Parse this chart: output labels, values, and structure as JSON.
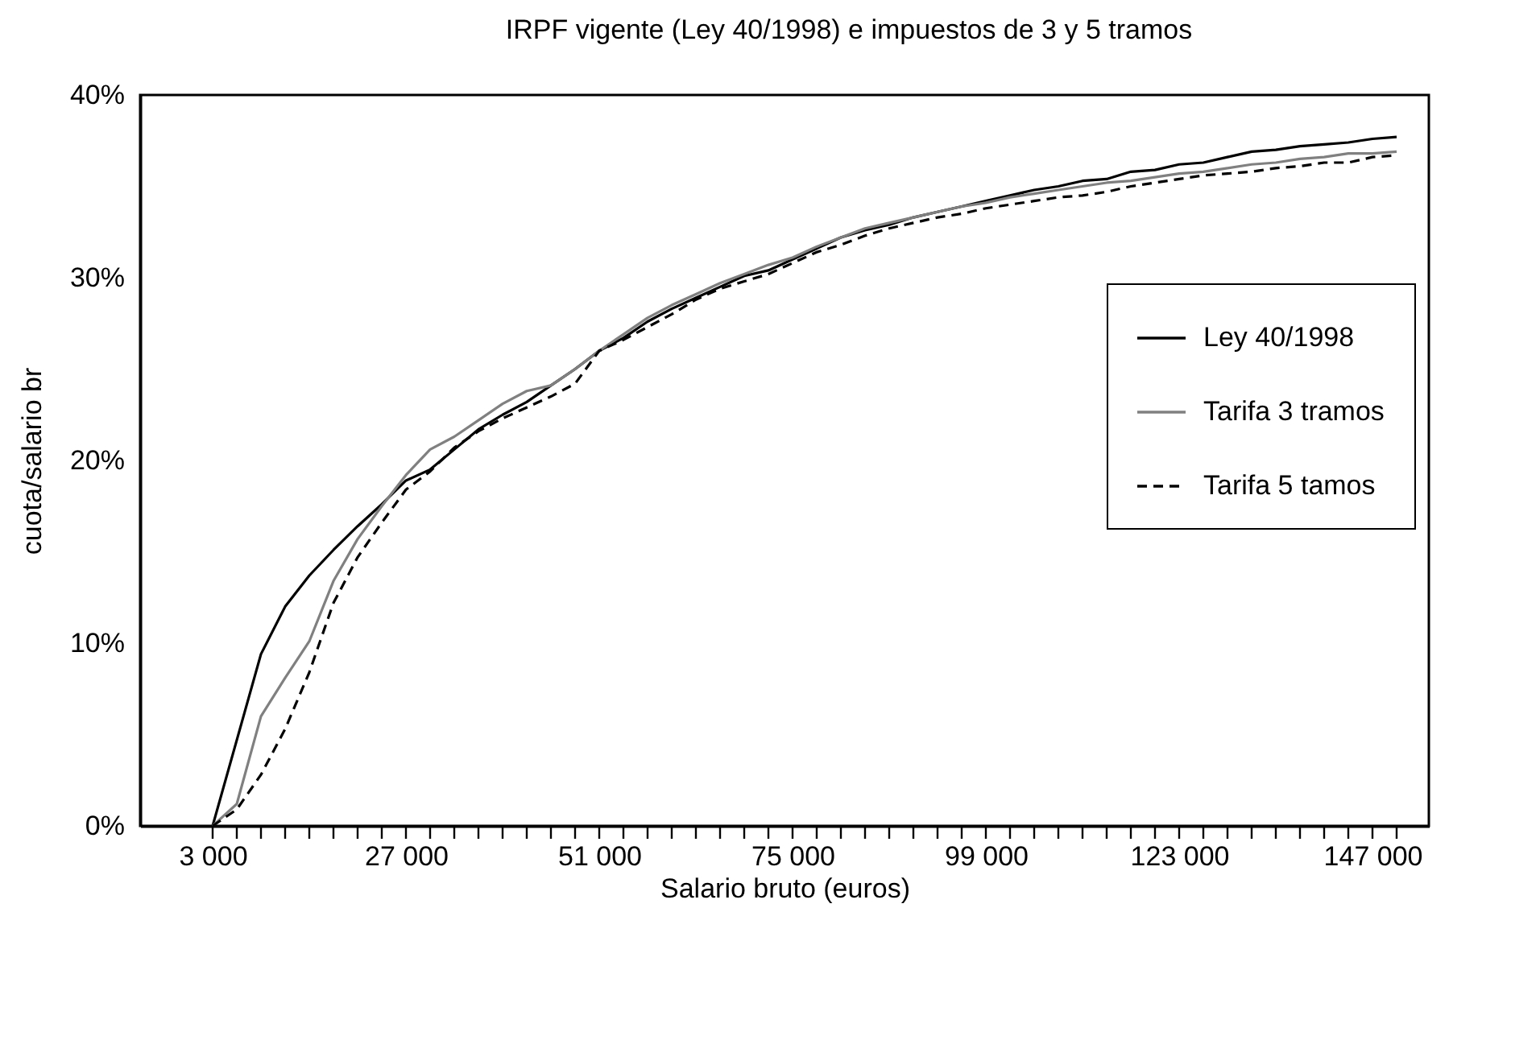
{
  "chart_data": {
    "type": "line",
    "title": "IRPF vigente (Ley 40/1998) e impuestos de 3 y 5 tramos",
    "xlabel": "Salario bruto (euros)",
    "ylabel": "cuota/salario br",
    "x": [
      3000,
      6000,
      9000,
      12000,
      15000,
      18000,
      21000,
      24000,
      27000,
      30000,
      33000,
      36000,
      39000,
      42000,
      45000,
      48000,
      51000,
      54000,
      57000,
      60000,
      63000,
      66000,
      69000,
      72000,
      75000,
      78000,
      81000,
      84000,
      87000,
      90000,
      93000,
      96000,
      99000,
      102000,
      105000,
      108000,
      111000,
      114000,
      117000,
      120000,
      123000,
      126000,
      129000,
      132000,
      135000,
      138000,
      141000,
      144000,
      147000,
      150000
    ],
    "series": [
      {
        "name": "Ley 40/1998",
        "color": "#000000",
        "line_style": "solid",
        "values": [
          0,
          4.7,
          9.4,
          12.0,
          13.7,
          15.1,
          16.4,
          17.6,
          18.9,
          19.5,
          20.6,
          21.7,
          22.5,
          23.2,
          24.1,
          25.0,
          26.0,
          26.7,
          27.6,
          28.3,
          28.9,
          29.5,
          30.1,
          30.4,
          31.0,
          31.6,
          32.2,
          32.6,
          32.9,
          33.3,
          33.6,
          33.9,
          34.2,
          34.5,
          34.8,
          35.0,
          35.3,
          35.4,
          35.8,
          35.9,
          36.2,
          36.3,
          36.6,
          36.9,
          37.0,
          37.2,
          37.3,
          37.4,
          37.6,
          37.7
        ]
      },
      {
        "name": "Tarifa 3 tramos",
        "color": "#808080",
        "line_style": "solid",
        "values": [
          0,
          1.2,
          6.0,
          8.1,
          10.1,
          13.4,
          15.7,
          17.5,
          19.2,
          20.6,
          21.3,
          22.2,
          23.1,
          23.8,
          24.1,
          25.0,
          26.0,
          26.9,
          27.8,
          28.5,
          29.1,
          29.7,
          30.2,
          30.7,
          31.1,
          31.7,
          32.2,
          32.7,
          33.0,
          33.3,
          33.6,
          33.9,
          34.1,
          34.4,
          34.6,
          34.8,
          35.0,
          35.2,
          35.3,
          35.5,
          35.7,
          35.8,
          36.0,
          36.2,
          36.3,
          36.5,
          36.6,
          36.8,
          36.8,
          36.9
        ]
      },
      {
        "name": "Tarifa 5 tamos",
        "color": "#000000",
        "line_style": "dashed",
        "values": [
          0,
          0.9,
          2.8,
          5.3,
          8.4,
          12.2,
          14.7,
          16.6,
          18.4,
          19.4,
          20.7,
          21.6,
          22.3,
          22.9,
          23.5,
          24.2,
          26.0,
          26.6,
          27.3,
          28.0,
          28.8,
          29.4,
          29.8,
          30.2,
          30.8,
          31.4,
          31.8,
          32.3,
          32.7,
          33.0,
          33.3,
          33.5,
          33.8,
          34.0,
          34.2,
          34.4,
          34.5,
          34.7,
          35.0,
          35.2,
          35.4,
          35.6,
          35.7,
          35.8,
          36.0,
          36.1,
          36.3,
          36.3,
          36.6,
          36.7
        ]
      }
    ],
    "xlim": [
      -6000,
      154000
    ],
    "xticks": [
      {
        "value": 3000,
        "label": "3 000"
      },
      {
        "value": 6000,
        "label": null
      },
      {
        "value": 9000,
        "label": null
      },
      {
        "value": 12000,
        "label": null
      },
      {
        "value": 15000,
        "label": null
      },
      {
        "value": 18000,
        "label": null
      },
      {
        "value": 21000,
        "label": null
      },
      {
        "value": 24000,
        "label": null
      },
      {
        "value": 27000,
        "label": "27 000"
      },
      {
        "value": 30000,
        "label": null
      },
      {
        "value": 33000,
        "label": null
      },
      {
        "value": 36000,
        "label": null
      },
      {
        "value": 39000,
        "label": null
      },
      {
        "value": 42000,
        "label": null
      },
      {
        "value": 45000,
        "label": null
      },
      {
        "value": 48000,
        "label": null
      },
      {
        "value": 51000,
        "label": "51 000"
      },
      {
        "value": 54000,
        "label": null
      },
      {
        "value": 57000,
        "label": null
      },
      {
        "value": 60000,
        "label": null
      },
      {
        "value": 63000,
        "label": null
      },
      {
        "value": 66000,
        "label": null
      },
      {
        "value": 69000,
        "label": null
      },
      {
        "value": 72000,
        "label": null
      },
      {
        "value": 75000,
        "label": "75 000"
      },
      {
        "value": 78000,
        "label": null
      },
      {
        "value": 81000,
        "label": null
      },
      {
        "value": 84000,
        "label": null
      },
      {
        "value": 87000,
        "label": null
      },
      {
        "value": 90000,
        "label": null
      },
      {
        "value": 93000,
        "label": null
      },
      {
        "value": 96000,
        "label": null
      },
      {
        "value": 99000,
        "label": "99 000"
      },
      {
        "value": 102000,
        "label": null
      },
      {
        "value": 105000,
        "label": null
      },
      {
        "value": 108000,
        "label": null
      },
      {
        "value": 111000,
        "label": null
      },
      {
        "value": 114000,
        "label": null
      },
      {
        "value": 117000,
        "label": null
      },
      {
        "value": 120000,
        "label": null
      },
      {
        "value": 123000,
        "label": "123 000"
      },
      {
        "value": 126000,
        "label": null
      },
      {
        "value": 129000,
        "label": null
      },
      {
        "value": 132000,
        "label": null
      },
      {
        "value": 135000,
        "label": null
      },
      {
        "value": 138000,
        "label": null
      },
      {
        "value": 141000,
        "label": null
      },
      {
        "value": 144000,
        "label": null
      },
      {
        "value": 147000,
        "label": "147 000"
      },
      {
        "value": 150000,
        "label": null
      }
    ],
    "ylim": [
      0,
      40
    ],
    "yticks": [
      {
        "value": 0,
        "label": "0%"
      },
      {
        "value": 10,
        "label": "10%"
      },
      {
        "value": 20,
        "label": "20%"
      },
      {
        "value": 30,
        "label": "30%"
      },
      {
        "value": 40,
        "label": "40%"
      }
    ],
    "grid": false,
    "legend": "right"
  }
}
